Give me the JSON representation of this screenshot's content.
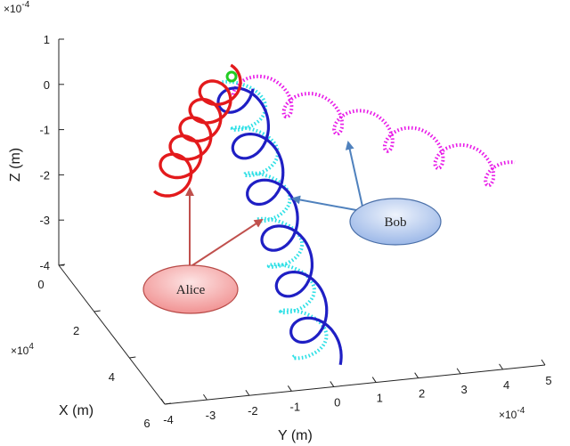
{
  "chart_data": {
    "type": "line",
    "projection": "3d",
    "grid": false,
    "axes": {
      "x": {
        "label": "X (m)",
        "multiplier": "× 10^4",
        "ticks": [
          "0",
          "2",
          "4",
          "6"
        ],
        "range": [
          0,
          6
        ]
      },
      "y": {
        "label": "Y (m)",
        "multiplier": "× 10^-4",
        "ticks": [
          "-4",
          "-3",
          "-2",
          "-1",
          "0",
          "1",
          "2",
          "3",
          "4",
          "5"
        ],
        "range": [
          -4,
          5
        ]
      },
      "z": {
        "label": "Z (m)",
        "multiplier": "× 10^-4",
        "ticks": [
          "1",
          "0",
          "-1",
          "-2",
          "-3",
          "-4"
        ],
        "range": [
          -4,
          1
        ]
      }
    },
    "series": [
      {
        "key": "alice_helix",
        "color": "#e31a1c",
        "style": "solid"
      },
      {
        "key": "bob_helix",
        "color": "#1f1fc4",
        "style": "solid"
      },
      {
        "key": "cyan_helix",
        "color": "#2fe0e6",
        "style": "dotted"
      },
      {
        "key": "magenta_helix",
        "color": "#e81ce8",
        "style": "dotted"
      }
    ],
    "start_marker": {
      "color": "#22cc22",
      "shape": "circle"
    },
    "annotations": [
      {
        "key": "alice",
        "text": "Alice",
        "fill": "#f4a3a3",
        "arrow_color": "#c0504d"
      },
      {
        "key": "bob",
        "text": "Bob",
        "fill": "#b9cdf0",
        "arrow_color": "#4f81bd"
      }
    ]
  }
}
